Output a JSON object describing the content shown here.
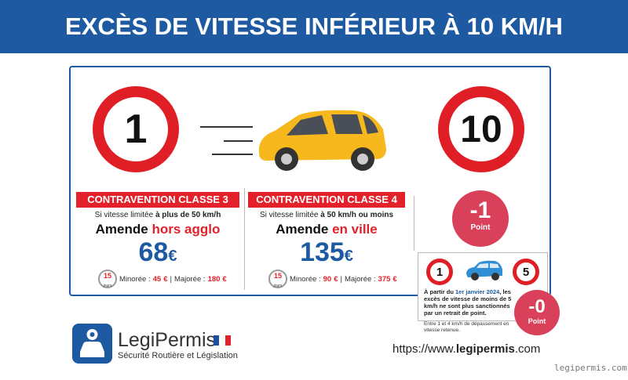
{
  "header": {
    "title": "EXCÈS DE VITESSE INFÉRIEUR À 10 KM/H"
  },
  "signs": {
    "from": "1",
    "to": "10"
  },
  "panels": [
    {
      "badge": "CONTRAVENTION CLASSE 3",
      "condition": "Si vitesse limitée",
      "condition_bold": "à plus de 50 km/h",
      "fine": "Amende",
      "where": "hors agglo",
      "amount": 68,
      "currency": "€",
      "days": 15,
      "days_label": "jours",
      "minoree_label": "Minorée :",
      "minoree": 45,
      "separator": "|",
      "majoree_label": "Majorée :",
      "majoree": 180
    },
    {
      "badge": "CONTRAVENTION CLASSE 4",
      "condition": "Si vitesse limitée",
      "condition_bold": "à 50 km/h ou moins",
      "fine": "Amende",
      "where": "en ville",
      "amount": 135,
      "currency": "€",
      "days": 15,
      "days_label": "jours",
      "minoree_label": "Minorée :",
      "minoree": 90,
      "separator": "|",
      "majoree_label": "Majorée :",
      "majoree": 375
    }
  ],
  "points": {
    "value": "-1",
    "label": "Point"
  },
  "note": {
    "sign_from": "1",
    "sign_to": "5",
    "text_start": "À partir du",
    "date": "1er janvier 2024",
    "text_end": ", les excès de vitesse de moins de 5 km/h ne sont plus sanctionnés par un retrait de point.",
    "footnote": "Entre 1 et 4 km/h de dépassement en vitesse retenue.",
    "points_value": "-0",
    "points_label": "Point"
  },
  "footer": {
    "brand": "LegiPermis",
    "tagline": "Sécurité Routière et Législation",
    "url_start": "https://www.",
    "url_bold": "legipermis",
    "url_end": ".com",
    "watermark": "legipermis.com"
  }
}
